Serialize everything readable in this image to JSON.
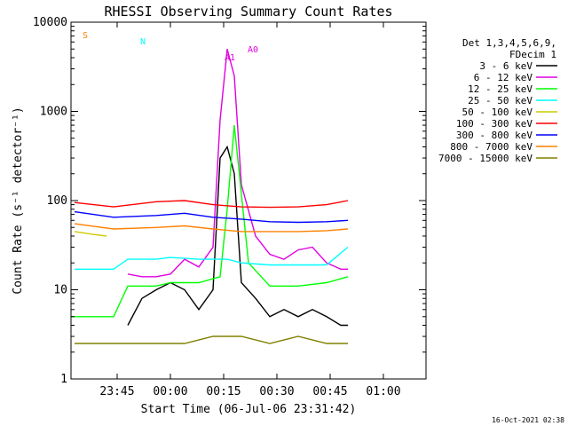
{
  "chart_data": {
    "type": "line",
    "title": "RHESSI Observing Summary Count Rates",
    "xlabel": "Start Time (06-Jul-06 23:31:42)",
    "ylabel": "Count Rate (s⁻¹ detector⁻¹)",
    "y_scale": "log",
    "ylim": [
      1,
      10000
    ],
    "xlim": [
      "23:32",
      "01:12"
    ],
    "x_ticks": [
      "23:45",
      "00:00",
      "00:15",
      "00:30",
      "00:45",
      "01:00"
    ],
    "y_ticks": [
      "1",
      "10",
      "100",
      "1000",
      "10000"
    ],
    "legend_title": [
      "Det 1,3,4,5,6,9,",
      "FDecim 1"
    ],
    "legend_placement": "right",
    "grid": false,
    "series": [
      {
        "name": "3 - 6 keV",
        "color": "#000000",
        "x": [
          "23:48",
          "23:52",
          "23:56",
          "00:00",
          "00:04",
          "00:08",
          "00:12",
          "00:14",
          "00:16",
          "00:18",
          "00:20",
          "00:24",
          "00:28",
          "00:32",
          "00:36",
          "00:40",
          "00:44",
          "00:48",
          "00:50"
        ],
        "y": [
          4,
          8,
          10,
          12,
          10,
          6,
          10,
          300,
          400,
          200,
          12,
          8,
          5,
          6,
          5,
          6,
          5,
          4,
          4
        ]
      },
      {
        "name": "6 - 12 keV",
        "color": "#e000e0",
        "x": [
          "23:48",
          "23:52",
          "23:56",
          "00:00",
          "00:04",
          "00:08",
          "00:12",
          "00:14",
          "00:16",
          "00:18",
          "00:20",
          "00:24",
          "00:28",
          "00:32",
          "00:36",
          "00:40",
          "00:44",
          "00:48",
          "00:50"
        ],
        "y": [
          15,
          14,
          14,
          15,
          22,
          18,
          30,
          800,
          5000,
          2500,
          150,
          40,
          25,
          22,
          28,
          30,
          20,
          17,
          17
        ]
      },
      {
        "name": "12 - 25 keV",
        "color": "#00ff00",
        "x": [
          "23:32",
          "23:44",
          "23:48",
          "23:56",
          "00:00",
          "00:08",
          "00:14",
          "00:16",
          "00:18",
          "00:22",
          "00:28",
          "00:36",
          "00:44",
          "00:50"
        ],
        "y": [
          5,
          5,
          11,
          11,
          12,
          12,
          14,
          80,
          700,
          20,
          11,
          11,
          12,
          14
        ]
      },
      {
        "name": "25 - 50 keV",
        "color": "#00ffff",
        "x": [
          "23:33",
          "23:44",
          "23:48",
          "23:56",
          "00:00",
          "00:08",
          "00:16",
          "00:20",
          "00:28",
          "00:36",
          "00:44",
          "00:50"
        ],
        "y": [
          17,
          17,
          22,
          22,
          23,
          22,
          22,
          20,
          19,
          19,
          19,
          30
        ]
      },
      {
        "name": "50 - 100 keV",
        "color": "#cccc00",
        "x": [
          "23:33",
          "23:38",
          "23:42"
        ],
        "y": [
          45,
          42,
          40
        ]
      },
      {
        "name": "100 - 300 keV",
        "color": "#ff0000",
        "x": [
          "23:33",
          "23:44",
          "23:56",
          "00:04",
          "00:12",
          "00:20",
          "00:28",
          "00:36",
          "00:44",
          "00:50"
        ],
        "y": [
          95,
          85,
          97,
          100,
          90,
          85,
          84,
          85,
          90,
          100
        ]
      },
      {
        "name": "300 - 800 keV",
        "color": "#0000ff",
        "x": [
          "23:33",
          "23:44",
          "23:56",
          "00:04",
          "00:12",
          "00:20",
          "00:28",
          "00:36",
          "00:44",
          "00:50"
        ],
        "y": [
          75,
          65,
          68,
          72,
          65,
          62,
          58,
          57,
          58,
          60
        ]
      },
      {
        "name": "800 - 7000 keV",
        "color": "#ff8000",
        "x": [
          "23:33",
          "23:44",
          "23:56",
          "00:04",
          "00:12",
          "00:20",
          "00:28",
          "00:36",
          "00:44",
          "00:50"
        ],
        "y": [
          55,
          48,
          50,
          52,
          48,
          45,
          45,
          45,
          46,
          48
        ]
      },
      {
        "name": "7000 - 15000 keV",
        "color": "#808000",
        "x": [
          "23:33",
          "23:44",
          "23:48",
          "23:56",
          "00:04",
          "00:12",
          "00:20",
          "00:28",
          "00:36",
          "00:44",
          "00:50"
        ],
        "y": [
          2.5,
          2.5,
          2.5,
          2.5,
          2.5,
          3,
          3,
          2.5,
          3,
          2.5,
          2.5
        ]
      }
    ],
    "flags": [
      {
        "label": "S",
        "color": "#ff8000"
      },
      {
        "label": "N",
        "color": "#00ffff"
      },
      {
        "label": "A1",
        "color": "#e000e0"
      },
      {
        "label": "A0",
        "color": "#e000e0"
      }
    ]
  },
  "footer": {
    "timestamp": "16-Oct-2021 02:38"
  }
}
